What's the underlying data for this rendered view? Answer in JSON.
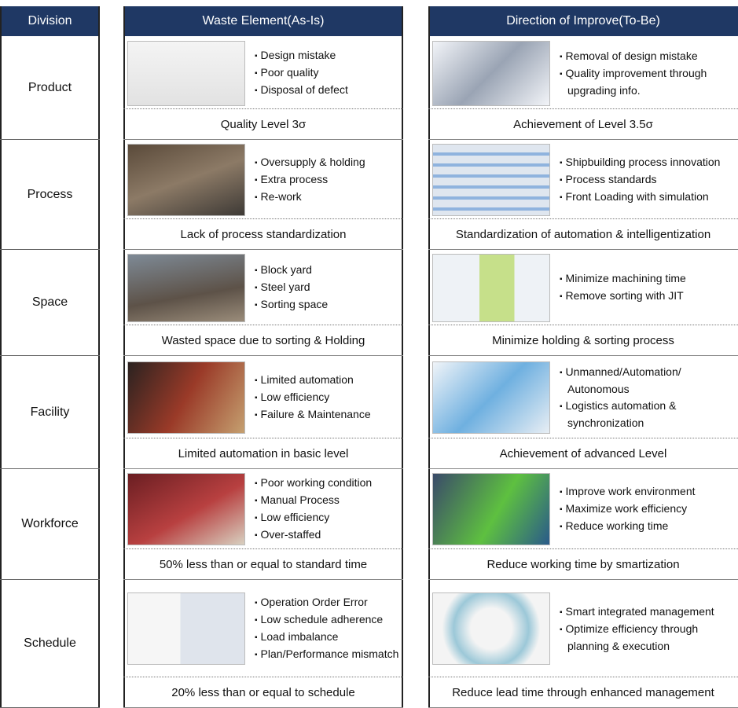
{
  "header": {
    "division": "Division",
    "waste": "Waste Element(As-Is)",
    "improve": "Direction of Improve(To-Be)"
  },
  "rows": [
    {
      "division": "Product",
      "waste": {
        "bullets": [
          "Design mistake",
          "Poor quality",
          "Disposal of defect"
        ],
        "summary": "Quality Level 3σ"
      },
      "improve": {
        "bullets": [
          "Removal of design mistake",
          "Quality improvement through upgrading info."
        ],
        "summary": "Achievement of Level 3.5σ"
      }
    },
    {
      "division": "Process",
      "waste": {
        "bullets": [
          "Oversupply & holding",
          "Extra process",
          "Re-work"
        ],
        "summary": "Lack of process standardization"
      },
      "improve": {
        "bullets": [
          "Shipbuilding process innovation",
          "Process standards",
          "Front Loading with simulation"
        ],
        "summary": "Standardization of automation & intelligentization"
      }
    },
    {
      "division": "Space",
      "waste": {
        "bullets": [
          "Block yard",
          "Steel yard",
          "Sorting space"
        ],
        "summary": "Wasted space due to sorting & Holding"
      },
      "improve": {
        "bullets": [
          "Minimize machining time",
          "Remove sorting with JIT"
        ],
        "summary": "Minimize  holding & sorting process"
      }
    },
    {
      "division": "Facility",
      "waste": {
        "bullets": [
          "Limited automation",
          "Low efficiency",
          "Failure & Maintenance"
        ],
        "summary": "Limited automation in basic level"
      },
      "improve": {
        "bullets": [
          "Unmanned/Automation/ Autonomous",
          "Logistics automation & synchronization"
        ],
        "summary": "Achievement of advanced Level"
      }
    },
    {
      "division": "Workforce",
      "waste": {
        "bullets": [
          "Poor working condition",
          "Manual Process",
          "Low efficiency",
          "Over-staffed"
        ],
        "summary": "50% less than or equal to standard time"
      },
      "improve": {
        "bullets": [
          "Improve work environment",
          "Maximize work efficiency",
          "Reduce working time"
        ],
        "summary": "Reduce working time by smartization"
      }
    },
    {
      "division": "Schedule",
      "waste": {
        "bullets": [
          "Operation Order Error",
          "Low schedule adherence",
          "Load imbalance",
          "Plan/Performance mismatch"
        ],
        "summary": "20% less than or equal to schedule"
      },
      "improve": {
        "bullets": [
          "Smart integrated management",
          "Optimize efficiency through planning & execution"
        ],
        "summary": "Reduce lead time through enhanced management"
      }
    }
  ]
}
